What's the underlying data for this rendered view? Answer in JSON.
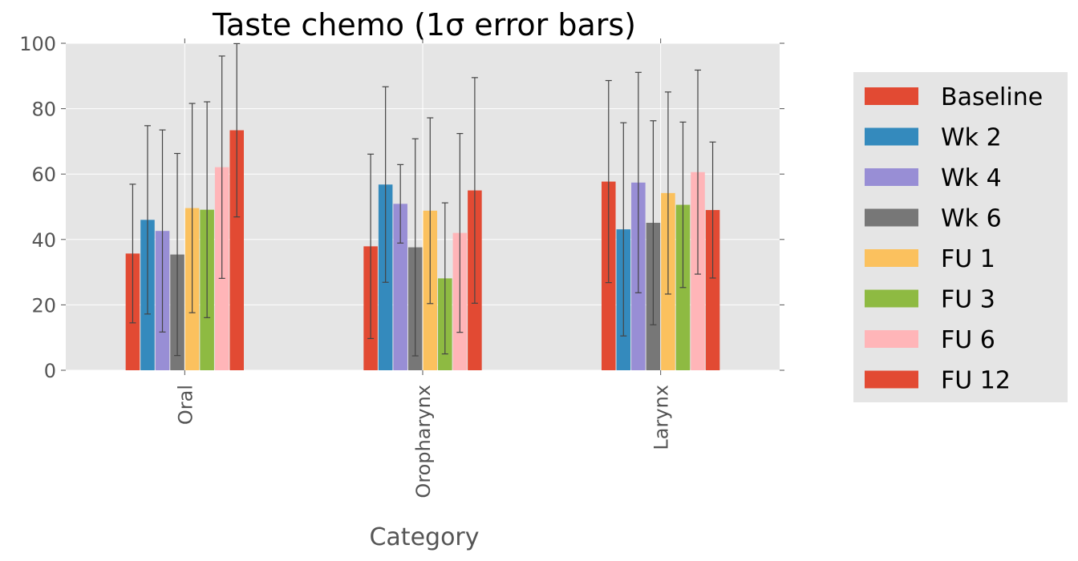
{
  "chart_data": {
    "type": "bar",
    "title": "Taste chemo (1σ error bars)",
    "xlabel": "Category",
    "ylabel": "",
    "ylim": [
      0,
      100
    ],
    "yticks": [
      0,
      20,
      40,
      60,
      80,
      100
    ],
    "grid": true,
    "legend_position": "right",
    "categories": [
      "Oral",
      "Oropharynx",
      "Larynx"
    ],
    "series": [
      {
        "name": "Baseline",
        "color": "#E24A33",
        "values": [
          35.7,
          37.9,
          57.7
        ],
        "errors": [
          21.2,
          28.2,
          30.9
        ]
      },
      {
        "name": "Wk 2",
        "color": "#348ABD",
        "values": [
          46.0,
          56.8,
          43.1
        ],
        "errors": [
          28.8,
          29.9,
          32.6
        ]
      },
      {
        "name": "Wk 4",
        "color": "#988ED5",
        "values": [
          42.6,
          50.9,
          57.4
        ],
        "errors": [
          30.9,
          12.0,
          33.7
        ]
      },
      {
        "name": "Wk 6",
        "color": "#777777",
        "values": [
          35.4,
          37.6,
          45.1
        ],
        "errors": [
          30.9,
          33.2,
          31.2
        ]
      },
      {
        "name": "FU 1",
        "color": "#FBC15E",
        "values": [
          49.6,
          48.8,
          54.2
        ],
        "errors": [
          32.0,
          28.4,
          30.9
        ]
      },
      {
        "name": "FU 3",
        "color": "#8EBA42",
        "values": [
          49.1,
          28.1,
          50.6
        ],
        "errors": [
          33.0,
          23.1,
          25.3
        ]
      },
      {
        "name": "FU 6",
        "color": "#FFB5B8",
        "values": [
          62.1,
          42.0,
          60.6
        ],
        "errors": [
          34.0,
          30.4,
          31.2
        ]
      },
      {
        "name": "FU 12",
        "color": "#E24A33",
        "values": [
          73.4,
          55.0,
          49.0
        ],
        "errors": [
          26.5,
          34.5,
          20.8
        ]
      }
    ]
  }
}
